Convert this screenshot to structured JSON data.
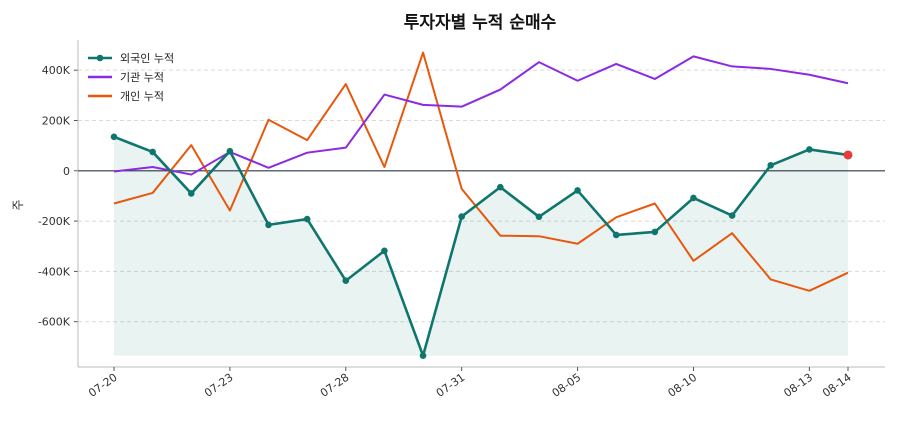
{
  "chart_data": {
    "type": "line",
    "title": "투자자별 누적 순매수",
    "ylabel": "주",
    "xlabel": "",
    "x": [
      "07-20",
      "07-21",
      "07-22",
      "07-23",
      "07-24",
      "07-27",
      "07-28",
      "07-29",
      "07-30",
      "07-31",
      "08-03",
      "08-04",
      "08-05",
      "08-06",
      "08-07",
      "08-10",
      "08-11",
      "08-12",
      "08-13",
      "08-14"
    ],
    "xticks": [
      "07-20",
      "07-23",
      "07-28",
      "07-31",
      "08-05",
      "08-10",
      "08-13",
      "08-14"
    ],
    "ylim": [
      -780000,
      520000
    ],
    "yticks": [
      400000,
      200000,
      0,
      -200000,
      -400000,
      -600000
    ],
    "ytick_labels": [
      "400K",
      "200K",
      "0",
      "-200K",
      "-400K",
      "-600K"
    ],
    "grid": "horizontal dashed",
    "legend_position": "top-left",
    "zero_line": true,
    "series": [
      {
        "name": "외국인 누적",
        "color": "#0f766e",
        "markers": true,
        "fill": true,
        "highlight_last": true,
        "highlight_color": "#e53e3e",
        "values": [
          135000,
          75000,
          -90000,
          78000,
          -215000,
          -192000,
          -437000,
          -318000,
          -735000,
          -182000,
          -65000,
          -183000,
          -78000,
          -255000,
          -243000,
          -108000,
          -178000,
          22000,
          85000,
          63000
        ]
      },
      {
        "name": "기관 누적",
        "color": "#8a2be2",
        "markers": false,
        "values": [
          -3000,
          15000,
          -15000,
          75000,
          12000,
          72000,
          92000,
          303000,
          262000,
          255000,
          323000,
          432000,
          358000,
          425000,
          365000,
          455000,
          415000,
          405000,
          382000,
          348000
        ]
      },
      {
        "name": "개인 누적",
        "color": "#e8580c",
        "markers": false,
        "values": [
          -130000,
          -88000,
          102000,
          -158000,
          203000,
          122000,
          345000,
          15000,
          470000,
          -72000,
          -258000,
          -260000,
          -290000,
          -185000,
          -130000,
          -358000,
          -248000,
          -432000,
          -477000,
          -405000
        ]
      }
    ]
  }
}
